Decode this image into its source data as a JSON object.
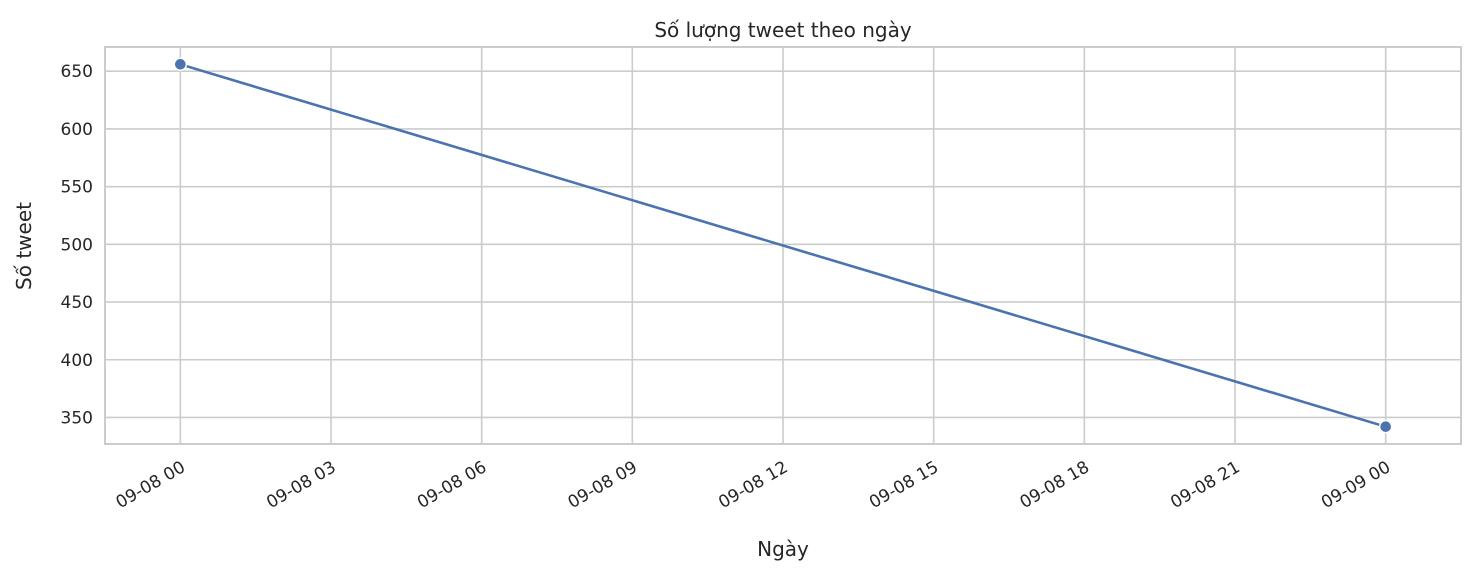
{
  "chart_data": {
    "type": "line",
    "title": "Số lượng tweet theo ngày",
    "xlabel": "Ngày",
    "ylabel": "Số tweet",
    "x_tick_labels": [
      "09-08 00",
      "09-08 03",
      "09-08 06",
      "09-08 09",
      "09-08 12",
      "09-08 15",
      "09-08 18",
      "09-08 21",
      "09-09 00"
    ],
    "y_ticks": [
      350,
      400,
      450,
      500,
      550,
      600,
      650
    ],
    "ylim": [
      327,
      671
    ],
    "xlim_hours": [
      -1.5,
      25.5
    ],
    "grid": true,
    "series": [
      {
        "color": "#4c72b0",
        "points": [
          {
            "x": "09-08 00",
            "y": 656
          },
          {
            "x": "09-09 00",
            "y": 342
          }
        ]
      }
    ]
  }
}
